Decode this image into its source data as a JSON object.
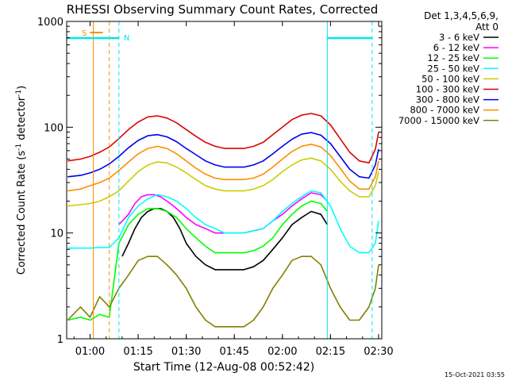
{
  "chart_data": {
    "type": "line",
    "title": "RHESSI Observing Summary Count Rates, Corrected",
    "xlabel": "Start Time (12-Aug-08 00:52:42)",
    "ylabel_main": "Corrected Count Rate (s",
    "ylabel_sup1": "-1",
    "ylabel_mid": " detector",
    "ylabel_sup2": "-1",
    "ylabel_end": ")",
    "y_scale": "log",
    "ylim": [
      1,
      1000
    ],
    "xlim": [
      "00:52:42",
      "02:31:00"
    ],
    "x_ticks": [
      "01:00",
      "01:15",
      "01:30",
      "01:45",
      "02:00",
      "02:15",
      "02:30"
    ],
    "y_ticks": [
      "1",
      "10",
      "100",
      "1000"
    ],
    "legend_position": "right",
    "legend_header": [
      "Det 1,3,4,5,6,9,",
      "Att 0"
    ],
    "footer_date": "15-Oct-2021 03:55",
    "flags": [
      {
        "label": "S",
        "color": "#ff8c00",
        "start": "01:00",
        "end": "01:04"
      },
      {
        "label": "N",
        "color": "#00e5ee",
        "start": "00:52:42",
        "end": "01:09",
        "start2": "02:14",
        "end2": "02:28"
      }
    ],
    "event_lines": [
      {
        "time": "01:01",
        "color": "#ff8c00",
        "style": "solid"
      },
      {
        "time": "01:06",
        "color": "#ff8c00",
        "style": "dashed"
      },
      {
        "time": "01:09",
        "color": "#00e5ee",
        "style": "dashed"
      },
      {
        "time": "02:14",
        "color": "#00e5ee",
        "style": "solid"
      },
      {
        "time": "02:28",
        "color": "#00e5ee",
        "style": "dashed"
      }
    ],
    "series": [
      {
        "name": "3 - 6 keV",
        "color": "#000000",
        "x": [
          "01:10",
          "01:12",
          "01:14",
          "01:16",
          "01:18",
          "01:20",
          "01:22",
          "01:24",
          "01:26",
          "01:28",
          "01:30",
          "01:33",
          "01:36",
          "01:39",
          "01:42",
          "01:45",
          "01:48",
          "01:51",
          "01:54",
          "01:57",
          "02:00",
          "02:03",
          "02:06",
          "02:09",
          "02:12",
          "02:14"
        ],
        "values": [
          6,
          8,
          11,
          14,
          16,
          17,
          17,
          16,
          14,
          11,
          8,
          6,
          5,
          4.5,
          4.5,
          4.5,
          4.5,
          4.8,
          5.5,
          7,
          9,
          12,
          14,
          16,
          15,
          12
        ]
      },
      {
        "name": "6 - 12 keV",
        "color": "#ff00ff",
        "x": [
          "01:09",
          "01:12",
          "01:14",
          "01:16",
          "01:18",
          "01:20",
          "01:22",
          "01:24",
          "01:26",
          "01:28",
          "01:30",
          "01:33",
          "01:36",
          "01:39",
          "01:42",
          "01:45",
          "01:48",
          "01:51",
          "01:54",
          "01:57",
          "02:00",
          "02:03",
          "02:06",
          "02:09",
          "02:12",
          "02:14"
        ],
        "values": [
          12,
          15,
          19,
          22,
          23,
          23,
          22,
          20,
          18,
          16,
          14,
          12,
          11,
          10,
          10,
          10,
          10,
          10.5,
          11,
          13,
          15,
          18,
          21,
          24,
          23,
          20
        ]
      },
      {
        "name": "12 - 25 keV",
        "color": "#00ff00",
        "x": [
          "00:53",
          "00:57",
          "01:00",
          "01:03",
          "01:06",
          "01:09",
          "01:12",
          "01:15",
          "01:18",
          "01:21",
          "01:24",
          "01:27",
          "01:30",
          "01:33",
          "01:36",
          "01:39",
          "01:42",
          "01:45",
          "01:48",
          "01:51",
          "01:54",
          "01:57",
          "02:00",
          "02:03",
          "02:06",
          "02:09",
          "02:12",
          "02:14"
        ],
        "values": [
          1.5,
          1.6,
          1.5,
          1.7,
          1.6,
          8,
          12,
          15,
          17,
          17,
          16,
          14,
          11,
          9,
          7.5,
          6.5,
          6.5,
          6.5,
          6.5,
          6.8,
          7.5,
          9,
          12,
          15,
          18,
          20,
          19,
          16
        ]
      },
      {
        "name": "25 - 50 keV",
        "color": "#00ffff",
        "x": [
          "00:53",
          "00:57",
          "01:00",
          "01:03",
          "01:06",
          "01:09",
          "01:12",
          "01:15",
          "01:18",
          "01:21",
          "01:24",
          "01:27",
          "01:30",
          "01:33",
          "01:36",
          "01:39",
          "01:42",
          "01:45",
          "01:48",
          "01:51",
          "01:54",
          "01:57",
          "02:00",
          "02:03",
          "02:06",
          "02:09",
          "02:12",
          "02:15",
          "02:18",
          "02:21",
          "02:24",
          "02:27",
          "02:29",
          "02:30"
        ],
        "values": [
          7.2,
          7.2,
          7.2,
          7.3,
          7.3,
          9,
          14,
          18,
          21,
          23,
          22,
          20,
          17,
          14,
          12,
          11,
          10,
          10,
          10,
          10.5,
          11,
          13,
          16,
          19,
          22,
          25,
          24,
          18,
          11,
          7.5,
          6.5,
          6.5,
          8,
          13
        ]
      },
      {
        "name": "50 - 100 keV",
        "color": "#cccc00",
        "x": [
          "00:53",
          "00:57",
          "01:00",
          "01:03",
          "01:06",
          "01:09",
          "01:12",
          "01:15",
          "01:18",
          "01:21",
          "01:24",
          "01:27",
          "01:30",
          "01:33",
          "01:36",
          "01:39",
          "01:42",
          "01:45",
          "01:48",
          "01:51",
          "01:54",
          "01:57",
          "02:00",
          "02:03",
          "02:06",
          "02:09",
          "02:12",
          "02:15",
          "02:18",
          "02:21",
          "02:24",
          "02:27",
          "02:29",
          "02:30"
        ],
        "values": [
          18,
          18.5,
          19,
          20,
          22,
          25,
          31,
          38,
          44,
          47,
          46,
          42,
          37,
          32,
          28,
          26,
          25,
          25,
          25,
          26,
          28,
          32,
          38,
          44,
          49,
          51,
          48,
          40,
          31,
          25,
          22,
          22,
          28,
          38
        ]
      },
      {
        "name": "100 - 300 keV",
        "color": "#dd0000",
        "x": [
          "00:53",
          "00:57",
          "01:00",
          "01:03",
          "01:06",
          "01:09",
          "01:12",
          "01:15",
          "01:18",
          "01:21",
          "01:24",
          "01:27",
          "01:30",
          "01:33",
          "01:36",
          "01:39",
          "01:42",
          "01:45",
          "01:48",
          "01:51",
          "01:54",
          "01:57",
          "02:00",
          "02:03",
          "02:06",
          "02:09",
          "02:12",
          "02:15",
          "02:18",
          "02:21",
          "02:24",
          "02:27",
          "02:29",
          "02:30"
        ],
        "values": [
          48,
          50,
          53,
          58,
          65,
          78,
          95,
          112,
          125,
          128,
          122,
          110,
          95,
          82,
          72,
          66,
          63,
          63,
          63,
          66,
          72,
          85,
          100,
          118,
          130,
          135,
          128,
          105,
          78,
          58,
          48,
          46,
          62,
          90
        ]
      },
      {
        "name": "300 - 800 keV",
        "color": "#0000ee",
        "x": [
          "00:53",
          "00:57",
          "01:00",
          "01:03",
          "01:06",
          "01:09",
          "01:12",
          "01:15",
          "01:18",
          "01:21",
          "01:24",
          "01:27",
          "01:30",
          "01:33",
          "01:36",
          "01:39",
          "01:42",
          "01:45",
          "01:48",
          "01:51",
          "01:54",
          "01:57",
          "02:00",
          "02:03",
          "02:06",
          "02:09",
          "02:12",
          "02:15",
          "02:18",
          "02:21",
          "02:24",
          "02:27",
          "02:29",
          "02:30"
        ],
        "values": [
          34,
          35,
          37,
          40,
          45,
          53,
          64,
          75,
          83,
          85,
          81,
          73,
          63,
          55,
          48,
          44,
          42,
          42,
          42,
          44,
          48,
          56,
          66,
          77,
          86,
          89,
          84,
          70,
          53,
          40,
          34,
          33,
          44,
          62
        ]
      },
      {
        "name": "800 - 7000 keV",
        "color": "#ff8c00",
        "x": [
          "00:53",
          "00:57",
          "01:00",
          "01:03",
          "01:06",
          "01:09",
          "01:12",
          "01:15",
          "01:18",
          "01:21",
          "01:24",
          "01:27",
          "01:30",
          "01:33",
          "01:36",
          "01:39",
          "01:42",
          "01:45",
          "01:48",
          "01:51",
          "01:54",
          "01:57",
          "02:00",
          "02:03",
          "02:06",
          "02:09",
          "02:12",
          "02:15",
          "02:18",
          "02:21",
          "02:24",
          "02:27",
          "02:29",
          "02:30"
        ],
        "values": [
          25,
          26,
          28,
          30,
          33,
          39,
          47,
          56,
          63,
          66,
          63,
          56,
          48,
          41,
          36,
          33,
          32,
          32,
          32,
          33,
          36,
          42,
          50,
          59,
          66,
          69,
          65,
          54,
          41,
          31,
          26,
          26,
          34,
          48
        ]
      },
      {
        "name": "7000 - 15000 keV",
        "color": "#808000",
        "x": [
          "00:53",
          "00:57",
          "01:00",
          "01:03",
          "01:06",
          "01:09",
          "01:12",
          "01:15",
          "01:18",
          "01:21",
          "01:24",
          "01:27",
          "01:30",
          "01:33",
          "01:36",
          "01:39",
          "01:42",
          "01:45",
          "01:48",
          "01:51",
          "01:54",
          "01:57",
          "02:00",
          "02:03",
          "02:06",
          "02:09",
          "02:12",
          "02:15",
          "02:18",
          "02:21",
          "02:24",
          "02:27",
          "02:29",
          "02:30"
        ],
        "values": [
          1.5,
          2,
          1.6,
          2.5,
          2,
          3,
          4,
          5.5,
          6,
          6,
          5,
          4,
          3,
          2,
          1.5,
          1.3,
          1.3,
          1.3,
          1.3,
          1.5,
          2,
          3,
          4,
          5.5,
          6,
          6,
          5,
          3,
          2,
          1.5,
          1.5,
          2,
          3,
          5
        ]
      }
    ]
  }
}
